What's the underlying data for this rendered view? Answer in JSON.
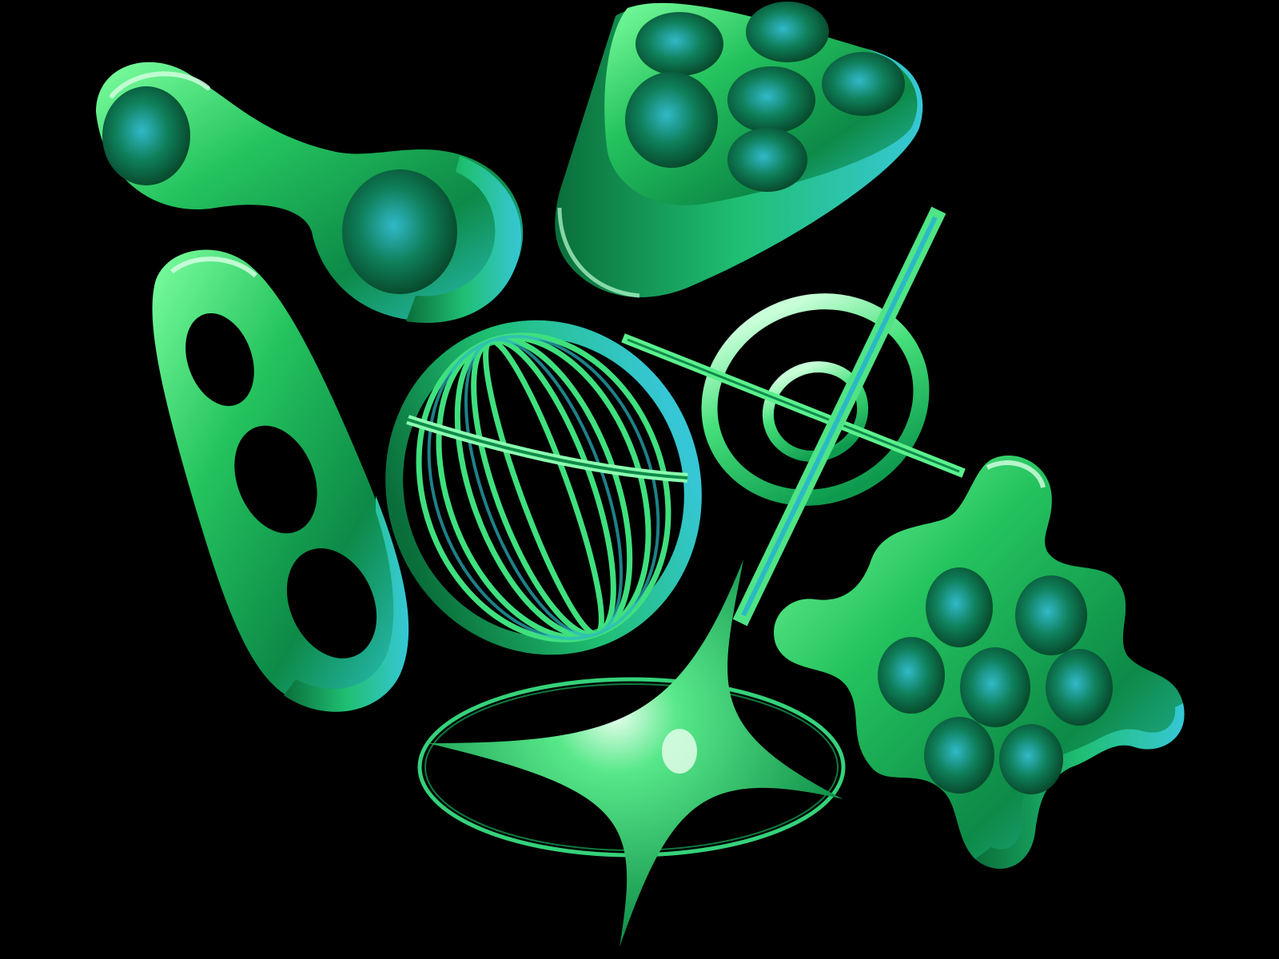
{
  "scene": {
    "background_color": "#000000",
    "palette": {
      "deep_green": "#0b7a3a",
      "mid_green": "#22c060",
      "bright_green": "#5ef08a",
      "highlight": "#c8ffd8",
      "cyan_tint": "#2fb5c8"
    },
    "objects": [
      {
        "name": "figure-eight-link",
        "shape": "linked double ring"
      },
      {
        "name": "six-hole-triangle-tray",
        "shape": "rounded triangular block with six round holes"
      },
      {
        "name": "triple-slot-capsule",
        "shape": "elongated capsule with three oval cut-outs"
      },
      {
        "name": "wireframe-egg-cage",
        "shape": "egg-shaped cage of vertical ribs with a horizontal band"
      },
      {
        "name": "crosshair-reticle",
        "shape": "two concentric rings crossed by two bars"
      },
      {
        "name": "four-point-star-with-orbit",
        "shape": "four-pointed sparkle star inside a thin elliptical orbit"
      },
      {
        "name": "hexagonal-blob-lattice",
        "shape": "molecule-like lattice with six round holes and knobbed arms"
      }
    ]
  }
}
